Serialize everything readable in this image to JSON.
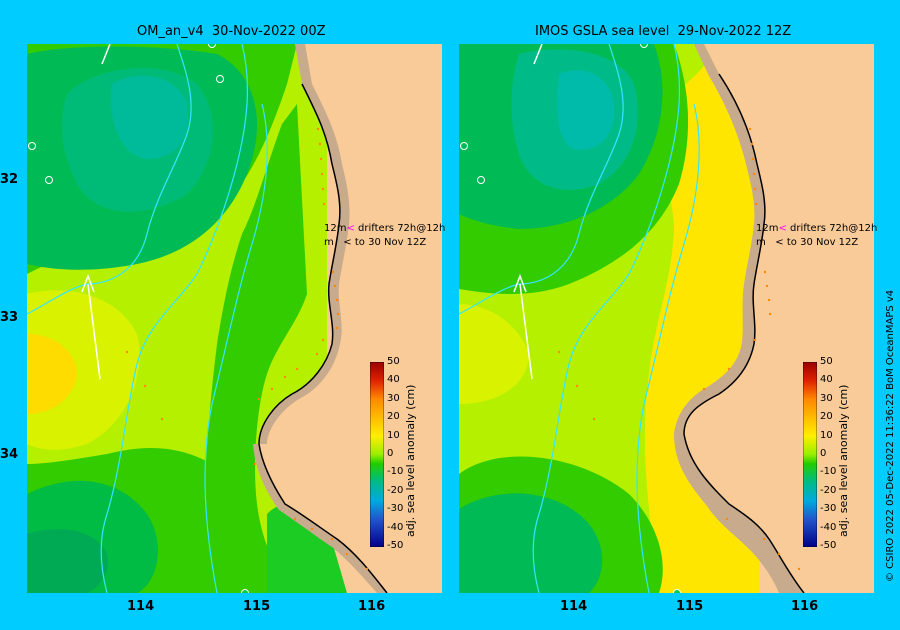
{
  "panels": [
    {
      "title": "OM_an_v4  30-Nov-2022 00Z"
    },
    {
      "title": "IMOS GSLA sea level  29-Nov-2022 12Z"
    }
  ],
  "axes": {
    "y_ticks": [
      "32",
      "33",
      "34"
    ],
    "x_ticks": [
      "114",
      "115",
      "116"
    ]
  },
  "drifter_legend": {
    "line1_prefix": "12m",
    "line1_arrow": "<",
    "line1_text": " drifters 72h@12h",
    "line2_prefix": "m",
    "line2_arrow": "<",
    "line2_text": " to 30 Nov 12Z",
    "pink_color": "#ff00ff"
  },
  "colorbar": {
    "label": "adj. sea level anomaly (cm)",
    "ticks": [
      "50",
      "40",
      "30",
      "20",
      "10",
      "0",
      "-10",
      "-20",
      "-30",
      "-40",
      "-50"
    ],
    "range_cm": [
      -50,
      50
    ]
  },
  "credit": "© CSIRO 2022   05-Dec-2022 11:36:22 BoM OceanMAPS v4",
  "colors": {
    "background": "#00ccff",
    "land": "#f9cb99",
    "coast_shelf": "#c8aa8c",
    "anomaly_0": "#33cc00",
    "anomaly_10": "#b5f000",
    "anomaly_20": "#ffe600",
    "anomaly_-10": "#00bb55",
    "anomaly_-20": "#00bb99"
  }
}
